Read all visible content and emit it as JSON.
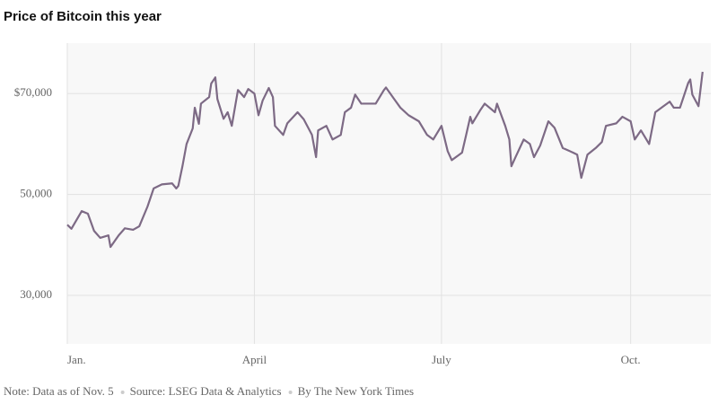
{
  "chart_data": {
    "type": "line",
    "title": "Price of Bitcoin this year",
    "notes": [
      "Note: Data as of Nov. 5",
      "Source: LSEG Data & Analytics",
      "By The New York Times"
    ],
    "x": [
      0,
      2,
      4,
      7,
      10,
      13,
      16,
      20,
      21,
      25,
      28,
      32,
      35,
      39,
      42,
      46,
      51,
      53,
      54,
      56,
      58,
      61,
      62,
      64,
      65,
      69,
      70,
      72,
      73,
      76,
      78,
      80,
      83,
      86,
      88,
      91,
      93,
      95,
      98,
      100,
      101,
      105,
      107,
      112,
      115,
      119,
      121,
      122,
      126,
      129,
      133,
      135,
      138,
      140,
      143,
      147,
      150,
      154,
      155,
      159,
      162,
      166,
      171,
      175,
      178,
      182,
      185,
      187,
      190,
      192,
      194,
      196,
      197,
      201,
      203,
      208,
      209,
      213,
      215,
      216,
      218,
      222,
      225,
      227,
      230,
      234,
      237,
      241,
      246,
      248,
      250,
      253,
      257,
      260,
      262,
      267,
      270,
      274,
      276,
      279,
      283,
      286,
      290,
      293,
      295,
      298,
      302,
      303,
      304,
      307,
      309
    ],
    "series": [
      {
        "name": "Bitcoin",
        "color": "#7d6a85",
        "values": [
          44000,
          43200,
          44600,
          46700,
          46200,
          42800,
          41400,
          41900,
          39600,
          41900,
          43300,
          43000,
          43700,
          47600,
          51200,
          52000,
          52200,
          51200,
          51700,
          55600,
          60000,
          63100,
          67200,
          64000,
          68000,
          69300,
          72000,
          73200,
          68900,
          65000,
          66300,
          63600,
          70700,
          69300,
          70900,
          70000,
          65700,
          68600,
          71100,
          69300,
          63600,
          61800,
          64100,
          66300,
          64900,
          61800,
          57400,
          62700,
          63600,
          60900,
          61800,
          66300,
          67200,
          69800,
          68000,
          68000,
          68000,
          70700,
          71200,
          68900,
          67200,
          65700,
          64500,
          61800,
          60900,
          63600,
          58600,
          56800,
          57700,
          58300,
          61800,
          65400,
          64100,
          66800,
          68000,
          66300,
          68000,
          63600,
          60900,
          55600,
          57400,
          60900,
          60000,
          57400,
          59700,
          64500,
          63200,
          59200,
          58300,
          57900,
          53300,
          57900,
          59200,
          60400,
          63600,
          64100,
          65400,
          64500,
          60900,
          62700,
          60000,
          66300,
          67500,
          68400,
          67200,
          67200,
          72100,
          72800,
          69800,
          67500,
          74300
        ]
      }
    ],
    "xlim": [
      0,
      313
    ],
    "xticks": [
      {
        "value": 0,
        "label": "Jan."
      },
      {
        "value": 91,
        "label": "April"
      },
      {
        "value": 182,
        "label": "July"
      },
      {
        "value": 274,
        "label": "Oct."
      }
    ],
    "ylim": [
      20400,
      80000
    ],
    "yticks": [
      {
        "value": 30000,
        "label": "30,000"
      },
      {
        "value": 50000,
        "label": "50,000"
      },
      {
        "value": 70000,
        "label": "$70,000"
      }
    ],
    "grid": true
  }
}
